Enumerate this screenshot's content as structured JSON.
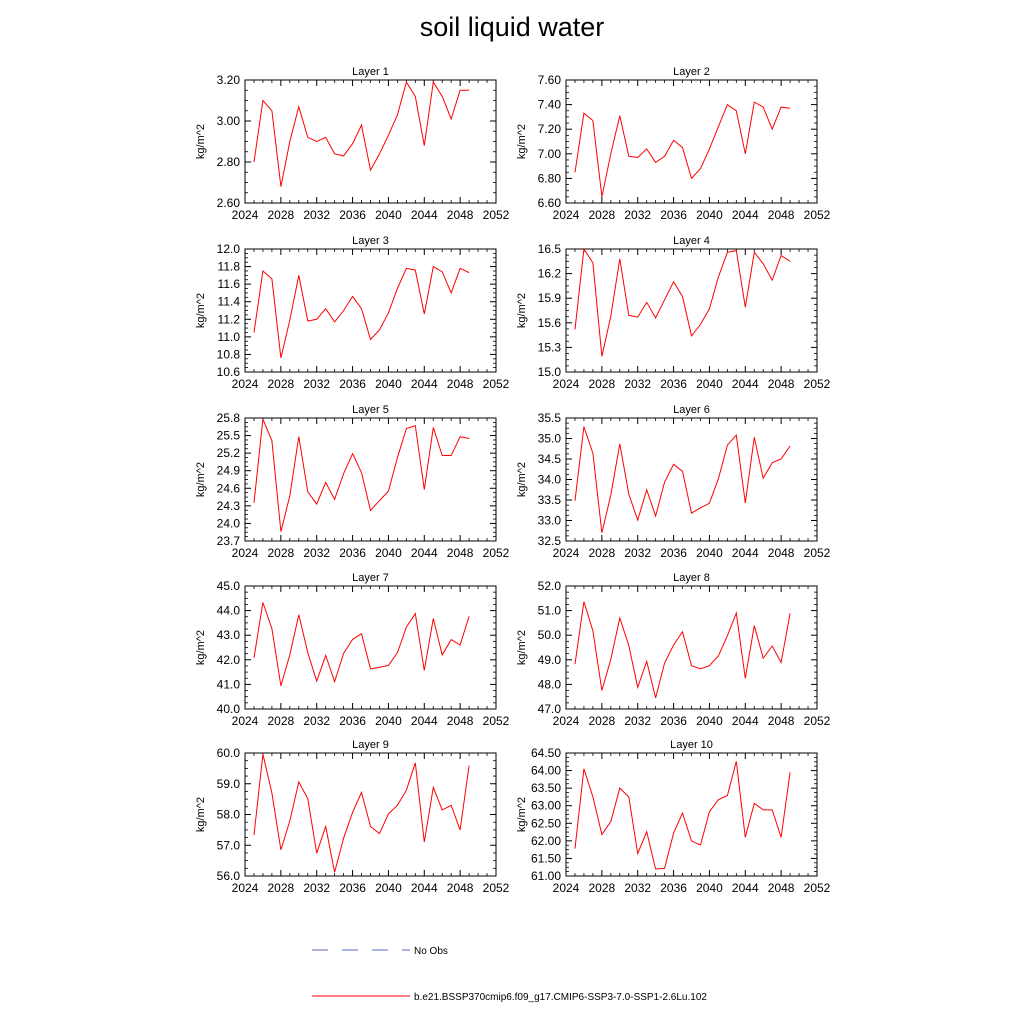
{
  "title": "soil liquid water",
  "legend": [
    {
      "label": "No Obs",
      "color": "#5a6acc",
      "style": "dashed"
    },
    {
      "label": "b.e21.BSSP370cmip6.f09_g17.CMIP6-SSP3-7.0-SSP1-2.6Lu.102",
      "color": "#ff0000",
      "style": "solid"
    }
  ],
  "chart_data": [
    {
      "type": "line",
      "title": "Layer 1",
      "ylabel": "kg/m^2",
      "xlim": [
        2024,
        2052
      ],
      "xticks": [
        "2024",
        "2028",
        "2032",
        "2036",
        "2040",
        "2044",
        "2048",
        "2052"
      ],
      "ylim": [
        2.6,
        3.2
      ],
      "yticks": [
        "2.60",
        "2.80",
        "3.00",
        "3.20"
      ],
      "series": [
        {
          "color": "#ff0000",
          "x": [
            2025,
            2026,
            2027,
            2028,
            2029,
            2030,
            2031,
            2032,
            2033,
            2034,
            2035,
            2036,
            2037,
            2038,
            2039,
            2040,
            2041,
            2042,
            2043,
            2044,
            2045,
            2046,
            2047,
            2048,
            2049
          ],
          "values": [
            2.8,
            3.1,
            3.05,
            2.68,
            2.9,
            3.07,
            2.92,
            2.9,
            2.92,
            2.84,
            2.83,
            2.89,
            2.98,
            2.76,
            2.84,
            2.93,
            3.03,
            3.19,
            3.12,
            2.88,
            3.19,
            3.12,
            3.01,
            3.15,
            3.15
          ]
        }
      ]
    },
    {
      "type": "line",
      "title": "Layer 2",
      "ylabel": "kg/m^2",
      "xlim": [
        2024,
        2052
      ],
      "xticks": [
        "2024",
        "2028",
        "2032",
        "2036",
        "2040",
        "2044",
        "2048",
        "2052"
      ],
      "ylim": [
        6.6,
        7.6
      ],
      "yticks": [
        "6.60",
        "6.80",
        "7.00",
        "7.20",
        "7.40",
        "7.60"
      ],
      "series": [
        {
          "color": "#ff0000",
          "x": [
            2025,
            2026,
            2027,
            2028,
            2029,
            2030,
            2031,
            2032,
            2033,
            2034,
            2035,
            2036,
            2037,
            2038,
            2039,
            2040,
            2041,
            2042,
            2043,
            2044,
            2045,
            2046,
            2047,
            2048,
            2049
          ],
          "values": [
            6.85,
            7.33,
            7.27,
            6.65,
            7.0,
            7.31,
            6.98,
            6.97,
            7.04,
            6.93,
            6.98,
            7.11,
            7.05,
            6.8,
            6.88,
            7.04,
            7.22,
            7.4,
            7.35,
            7.0,
            7.42,
            7.38,
            7.2,
            7.38,
            7.37
          ]
        }
      ]
    },
    {
      "type": "line",
      "title": "Layer 3",
      "ylabel": "kg/m^2",
      "xlim": [
        2024,
        2052
      ],
      "xticks": [
        "2024",
        "2028",
        "2032",
        "2036",
        "2040",
        "2044",
        "2048",
        "2052"
      ],
      "ylim": [
        10.6,
        12.0
      ],
      "yticks": [
        "10.6",
        "10.8",
        "11.0",
        "11.2",
        "11.4",
        "11.6",
        "11.8",
        "12.0"
      ],
      "series": [
        {
          "color": "#ff0000",
          "x": [
            2025,
            2026,
            2027,
            2028,
            2029,
            2030,
            2031,
            2032,
            2033,
            2034,
            2035,
            2036,
            2037,
            2038,
            2039,
            2040,
            2041,
            2042,
            2043,
            2044,
            2045,
            2046,
            2047,
            2048,
            2049
          ],
          "values": [
            11.05,
            11.75,
            11.66,
            10.76,
            11.19,
            11.7,
            11.18,
            11.2,
            11.32,
            11.17,
            11.3,
            11.46,
            11.32,
            10.97,
            11.08,
            11.27,
            11.55,
            11.78,
            11.76,
            11.26,
            11.8,
            11.74,
            11.5,
            11.78,
            11.73
          ]
        }
      ]
    },
    {
      "type": "line",
      "title": "Layer 4",
      "ylabel": "kg/m^2",
      "xlim": [
        2024,
        2052
      ],
      "xticks": [
        "2024",
        "2028",
        "2032",
        "2036",
        "2040",
        "2044",
        "2048",
        "2052"
      ],
      "ylim": [
        15.0,
        16.5
      ],
      "yticks": [
        "15.0",
        "15.3",
        "15.6",
        "15.9",
        "16.2",
        "16.5"
      ],
      "series": [
        {
          "color": "#ff0000",
          "x": [
            2025,
            2026,
            2027,
            2028,
            2029,
            2030,
            2031,
            2032,
            2033,
            2034,
            2035,
            2036,
            2037,
            2038,
            2039,
            2040,
            2041,
            2042,
            2043,
            2044,
            2045,
            2046,
            2047,
            2048,
            2049
          ],
          "values": [
            15.52,
            16.5,
            16.33,
            15.19,
            15.68,
            16.38,
            15.69,
            15.67,
            15.85,
            15.66,
            15.88,
            16.1,
            15.92,
            15.44,
            15.58,
            15.77,
            16.16,
            16.46,
            16.48,
            15.79,
            16.46,
            16.32,
            16.12,
            16.42,
            16.35
          ]
        }
      ]
    },
    {
      "type": "line",
      "title": "Layer 5",
      "ylabel": "kg/m^2",
      "xlim": [
        2024,
        2052
      ],
      "xticks": [
        "2024",
        "2028",
        "2032",
        "2036",
        "2040",
        "2044",
        "2048",
        "2052"
      ],
      "ylim": [
        23.7,
        25.8
      ],
      "yticks": [
        "23.7",
        "24.0",
        "24.3",
        "24.6",
        "24.9",
        "25.2",
        "25.5",
        "25.8"
      ],
      "series": [
        {
          "color": "#ff0000",
          "x": [
            2025,
            2026,
            2027,
            2028,
            2029,
            2030,
            2031,
            2032,
            2033,
            2034,
            2035,
            2036,
            2037,
            2038,
            2039,
            2040,
            2041,
            2042,
            2043,
            2044,
            2045,
            2046,
            2047,
            2048,
            2049
          ],
          "values": [
            24.35,
            25.78,
            25.41,
            23.86,
            24.47,
            25.48,
            24.54,
            24.33,
            24.7,
            24.41,
            24.85,
            25.19,
            24.87,
            24.22,
            24.39,
            24.55,
            25.12,
            25.62,
            25.67,
            24.58,
            25.64,
            25.16,
            25.16,
            25.48,
            25.45
          ]
        }
      ]
    },
    {
      "type": "line",
      "title": "Layer 6",
      "ylabel": "kg/m^2",
      "xlim": [
        2024,
        2052
      ],
      "xticks": [
        "2024",
        "2028",
        "2032",
        "2036",
        "2040",
        "2044",
        "2048",
        "2052"
      ],
      "ylim": [
        32.5,
        35.5
      ],
      "yticks": [
        "32.5",
        "33.0",
        "33.5",
        "34.0",
        "34.5",
        "35.0",
        "35.5"
      ],
      "series": [
        {
          "color": "#ff0000",
          "x": [
            2025,
            2026,
            2027,
            2028,
            2029,
            2030,
            2031,
            2032,
            2033,
            2034,
            2035,
            2036,
            2037,
            2038,
            2039,
            2040,
            2041,
            2042,
            2043,
            2044,
            2045,
            2046,
            2047,
            2048,
            2049
          ],
          "values": [
            33.48,
            35.29,
            34.64,
            32.7,
            33.62,
            34.87,
            33.64,
            33.01,
            33.75,
            33.11,
            33.94,
            34.37,
            34.2,
            33.18,
            33.31,
            33.42,
            34.02,
            34.84,
            35.08,
            33.43,
            35.03,
            34.03,
            34.41,
            34.5,
            34.82
          ]
        }
      ]
    },
    {
      "type": "line",
      "title": "Layer 7",
      "ylabel": "kg/m^2",
      "xlim": [
        2024,
        2052
      ],
      "xticks": [
        "2024",
        "2028",
        "2032",
        "2036",
        "2040",
        "2044",
        "2048",
        "2052"
      ],
      "ylim": [
        40.0,
        45.0
      ],
      "yticks": [
        "40.0",
        "41.0",
        "42.0",
        "43.0",
        "44.0",
        "45.0"
      ],
      "series": [
        {
          "color": "#ff0000",
          "x": [
            2025,
            2026,
            2027,
            2028,
            2029,
            2030,
            2031,
            2032,
            2033,
            2034,
            2035,
            2036,
            2037,
            2038,
            2039,
            2040,
            2041,
            2042,
            2043,
            2044,
            2045,
            2046,
            2047,
            2048,
            2049
          ],
          "values": [
            42.08,
            44.33,
            43.27,
            40.94,
            42.2,
            43.83,
            42.29,
            41.13,
            42.18,
            41.11,
            42.26,
            42.83,
            43.06,
            41.63,
            41.7,
            41.77,
            42.29,
            43.33,
            43.88,
            41.57,
            43.68,
            42.2,
            42.82,
            42.6,
            43.77
          ]
        }
      ]
    },
    {
      "type": "line",
      "title": "Layer 8",
      "ylabel": "kg/m^2",
      "xlim": [
        2024,
        2052
      ],
      "xticks": [
        "2024",
        "2028",
        "2032",
        "2036",
        "2040",
        "2044",
        "2048",
        "2052"
      ],
      "ylim": [
        47.0,
        52.0
      ],
      "yticks": [
        "47.0",
        "48.0",
        "49.0",
        "50.0",
        "51.0",
        "52.0"
      ],
      "series": [
        {
          "color": "#ff0000",
          "x": [
            2025,
            2026,
            2027,
            2028,
            2029,
            2030,
            2031,
            2032,
            2033,
            2034,
            2035,
            2036,
            2037,
            2038,
            2039,
            2040,
            2041,
            2042,
            2043,
            2044,
            2045,
            2046,
            2047,
            2048,
            2049
          ],
          "values": [
            48.83,
            51.36,
            50.18,
            47.75,
            49.02,
            50.7,
            49.58,
            47.88,
            48.94,
            47.45,
            48.87,
            49.6,
            50.14,
            48.76,
            48.63,
            48.76,
            49.16,
            49.98,
            50.9,
            48.25,
            50.39,
            49.06,
            49.56,
            48.89,
            50.89
          ]
        }
      ]
    },
    {
      "type": "line",
      "title": "Layer 9",
      "ylabel": "kg/m^2",
      "xlim": [
        2024,
        2052
      ],
      "xticks": [
        "2024",
        "2028",
        "2032",
        "2036",
        "2040",
        "2044",
        "2048",
        "2052"
      ],
      "ylim": [
        56.0,
        60.0
      ],
      "yticks": [
        "56.0",
        "57.0",
        "58.0",
        "59.0",
        "60.0"
      ],
      "series": [
        {
          "color": "#ff0000",
          "x": [
            2025,
            2026,
            2027,
            2028,
            2029,
            2030,
            2031,
            2032,
            2033,
            2034,
            2035,
            2036,
            2037,
            2038,
            2039,
            2040,
            2041,
            2042,
            2043,
            2044,
            2045,
            2046,
            2047,
            2048,
            2049
          ],
          "values": [
            57.33,
            59.96,
            58.7,
            56.85,
            57.79,
            59.06,
            58.51,
            56.74,
            57.61,
            56.12,
            57.23,
            58.07,
            58.72,
            57.61,
            57.38,
            58.02,
            58.3,
            58.79,
            59.68,
            57.11,
            58.88,
            58.15,
            58.3,
            57.5,
            59.59
          ]
        }
      ]
    },
    {
      "type": "line",
      "title": "Layer 10",
      "ylabel": "kg/m^2",
      "xlim": [
        2024,
        2052
      ],
      "xticks": [
        "2024",
        "2028",
        "2032",
        "2036",
        "2040",
        "2044",
        "2048",
        "2052"
      ],
      "ylim": [
        61.0,
        64.5
      ],
      "yticks": [
        "61.00",
        "61.50",
        "62.00",
        "62.50",
        "63.00",
        "63.50",
        "64.00",
        "64.50"
      ],
      "series": [
        {
          "color": "#ff0000",
          "x": [
            2025,
            2026,
            2027,
            2028,
            2029,
            2030,
            2031,
            2032,
            2033,
            2034,
            2035,
            2036,
            2037,
            2038,
            2039,
            2040,
            2041,
            2042,
            2043,
            2044,
            2045,
            2046,
            2047,
            2048,
            2049
          ],
          "values": [
            61.78,
            64.05,
            63.25,
            62.18,
            62.55,
            63.5,
            63.25,
            61.64,
            62.26,
            61.2,
            61.22,
            62.22,
            62.79,
            62.0,
            61.88,
            62.83,
            63.17,
            63.29,
            64.26,
            62.1,
            63.07,
            62.88,
            62.88,
            62.1,
            63.95
          ]
        }
      ]
    }
  ]
}
